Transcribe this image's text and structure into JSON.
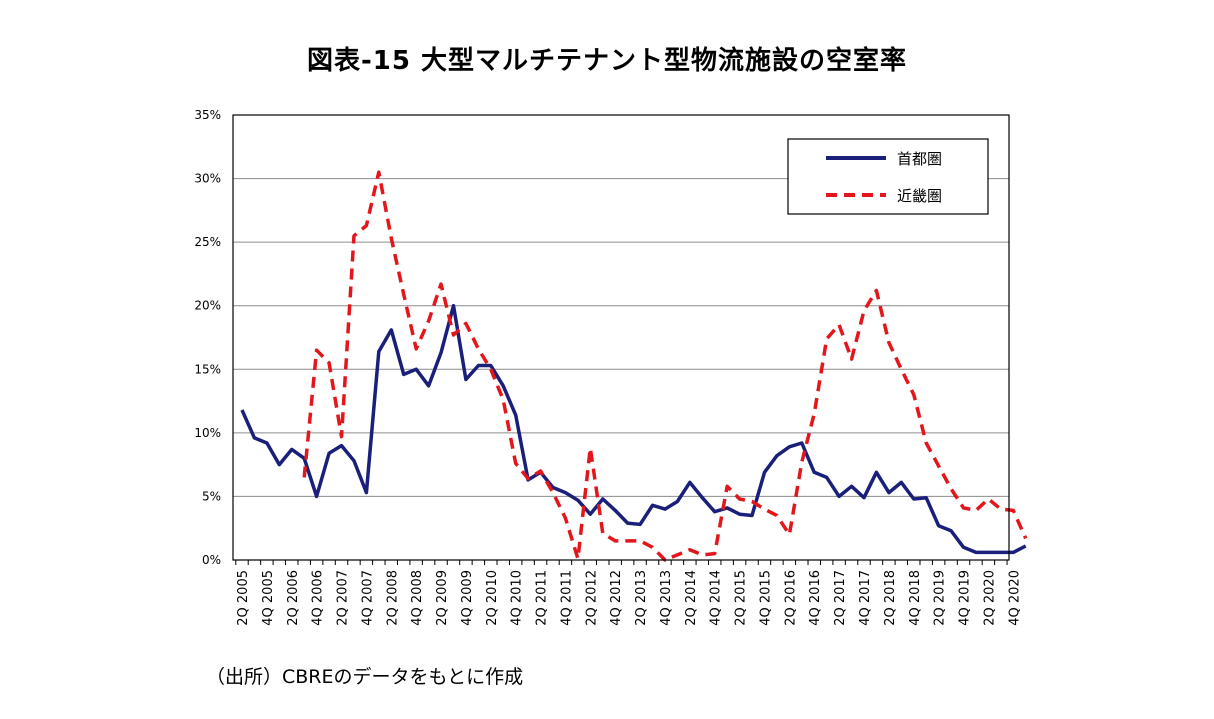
{
  "chart_data": {
    "type": "line",
    "title": "図表-15 大型マルチテナント型物流施設の空室率",
    "source": "（出所）CBREのデータをもとに作成",
    "ylim": [
      0,
      35
    ],
    "yticks": [
      "0%",
      "5%",
      "10%",
      "15%",
      "20%",
      "25%",
      "30%",
      "35%"
    ],
    "grid": "horizontal",
    "legend_position": "top-right",
    "x": [
      "2Q 2005",
      "3Q 2005",
      "4Q 2005",
      "1Q 2006",
      "2Q 2006",
      "3Q 2006",
      "4Q 2006",
      "1Q 2007",
      "2Q 2007",
      "3Q 2007",
      "4Q 2007",
      "1Q 2008",
      "2Q 2008",
      "3Q 2008",
      "4Q 2008",
      "1Q 2009",
      "2Q 2009",
      "3Q 2009",
      "4Q 2009",
      "1Q 2010",
      "2Q 2010",
      "3Q 2010",
      "4Q 2010",
      "1Q 2011",
      "2Q 2011",
      "3Q 2011",
      "4Q 2011",
      "1Q 2012",
      "2Q 2012",
      "3Q 2012",
      "4Q 2012",
      "1Q 2013",
      "2Q 2013",
      "3Q 2013",
      "4Q 2013",
      "1Q 2014",
      "2Q 2014",
      "3Q 2014",
      "4Q 2014",
      "1Q 2015",
      "2Q 2015",
      "3Q 2015",
      "4Q 2015",
      "1Q 2016",
      "2Q 2016",
      "3Q 2016",
      "4Q 2016",
      "1Q 2017",
      "2Q 2017",
      "3Q 2017",
      "4Q 2017",
      "1Q 2018",
      "2Q 2018",
      "3Q 2018",
      "4Q 2018",
      "1Q 2019",
      "2Q 2019",
      "3Q 2019",
      "4Q 2019",
      "1Q 2020",
      "2Q 2020",
      "3Q 2020",
      "4Q 2020",
      "1Q 2021"
    ],
    "x_tick_labels": [
      "2Q 2005",
      "4Q 2005",
      "2Q 2006",
      "4Q 2006",
      "2Q 2007",
      "4Q 2007",
      "2Q 2008",
      "4Q 2008",
      "2Q 2009",
      "4Q 2009",
      "2Q 2010",
      "4Q 2010",
      "2Q 2011",
      "4Q 2011",
      "2Q 2012",
      "4Q 2012",
      "2Q 2013",
      "4Q 2013",
      "2Q 2014",
      "4Q 2014",
      "2Q 2015",
      "4Q 2015",
      "2Q 2016",
      "4Q 2016",
      "2Q 2017",
      "4Q 2017",
      "2Q 2018",
      "4Q 2018",
      "2Q 2019",
      "4Q 2019",
      "2Q 2020",
      "4Q 2020"
    ],
    "series": [
      {
        "name": "首都圏",
        "color": "#1a1f7a",
        "style": "solid",
        "values": [
          11.8,
          9.6,
          9.2,
          7.5,
          8.7,
          8.0,
          5.0,
          8.4,
          9.0,
          7.8,
          5.3,
          16.4,
          18.1,
          14.6,
          15.0,
          13.7,
          16.3,
          20.0,
          14.2,
          15.3,
          15.3,
          13.7,
          11.4,
          6.3,
          6.9,
          5.7,
          5.3,
          4.7,
          3.6,
          4.8,
          3.9,
          2.9,
          2.8,
          4.3,
          4.0,
          4.6,
          6.1,
          4.9,
          3.8,
          4.1,
          3.6,
          3.5,
          6.9,
          8.2,
          8.9,
          9.2,
          6.9,
          6.5,
          5.0,
          5.8,
          4.9,
          6.9,
          5.3,
          6.1,
          4.8,
          4.9,
          2.7,
          2.3,
          1.0,
          0.6,
          0.6,
          0.6,
          0.6,
          1.1
        ]
      },
      {
        "name": "近畿圏",
        "color": "#e3161b",
        "style": "dashed",
        "values": [
          null,
          null,
          null,
          null,
          null,
          6.5,
          16.5,
          15.5,
          9.7,
          25.5,
          26.3,
          30.5,
          25.3,
          20.9,
          16.6,
          18.8,
          21.7,
          17.7,
          18.6,
          16.6,
          15.0,
          12.6,
          7.6,
          6.4,
          7.0,
          5.3,
          3.3,
          0.1,
          8.8,
          2.1,
          1.5,
          1.5,
          1.5,
          1.0,
          0.0,
          0.4,
          0.8,
          0.4,
          0.5,
          5.8,
          4.8,
          4.6,
          4.0,
          3.5,
          2.0,
          7.7,
          11.5,
          17.4,
          18.5,
          15.8,
          19.6,
          21.2,
          17.1,
          15.0,
          13.0,
          9.2,
          7.4,
          5.6,
          4.1,
          3.9,
          4.8,
          4.0,
          3.9,
          1.7
        ]
      }
    ]
  }
}
